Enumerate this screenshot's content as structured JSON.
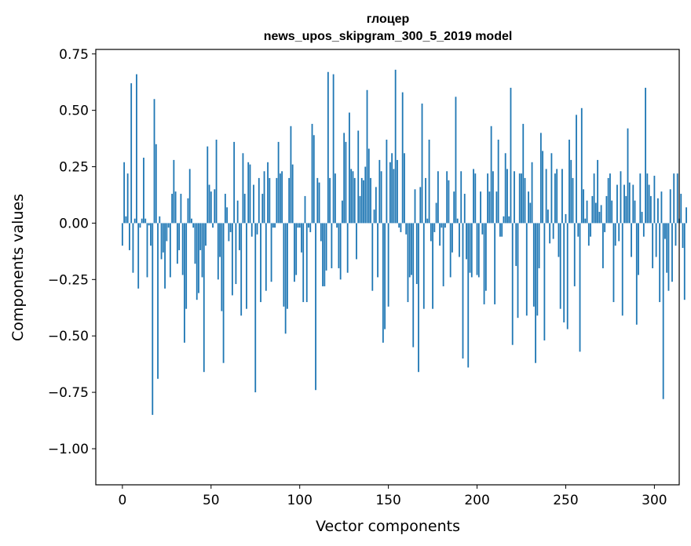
{
  "chart_data": {
    "type": "bar",
    "title_line1": "глоцер",
    "title_line2": "news_upos_skipgram_300_5_2019 model",
    "xlabel": "Vector components",
    "ylabel": "Components values",
    "xlim": [
      -15,
      314
    ],
    "ylim": [
      -1.16,
      0.77
    ],
    "x_ticks": [
      0,
      50,
      100,
      150,
      200,
      250,
      300
    ],
    "x_tick_labels": [
      "0",
      "50",
      "100",
      "150",
      "200",
      "250",
      "300"
    ],
    "y_ticks": [
      0.75,
      0.5,
      0.25,
      0.0,
      -0.25,
      -0.5,
      -0.75,
      -1.0
    ],
    "y_tick_labels": [
      "0.75",
      "0.50",
      "0.25",
      "0.00",
      "−0.25",
      "−0.50",
      "−0.75",
      "−1.00"
    ],
    "bar_color": "#1f77b4",
    "bar_width": 0.8,
    "values": [
      -0.1,
      0.27,
      0.03,
      0.22,
      -0.12,
      0.62,
      -0.22,
      0.02,
      0.66,
      -0.29,
      -0.02,
      0.02,
      0.29,
      0.02,
      -0.24,
      -0.01,
      -0.1,
      -0.85,
      0.55,
      0.35,
      -0.69,
      0.03,
      -0.16,
      -0.13,
      -0.29,
      -0.08,
      -0.02,
      -0.24,
      0.13,
      0.28,
      0.14,
      -0.18,
      -0.12,
      0.13,
      -0.23,
      -0.53,
      -0.38,
      0.11,
      0.24,
      0.02,
      -0.02,
      -0.18,
      -0.34,
      -0.31,
      -0.12,
      -0.24,
      -0.66,
      -0.1,
      0.34,
      0.17,
      0.14,
      -0.02,
      0.15,
      0.37,
      -0.25,
      -0.15,
      -0.39,
      -0.62,
      0.13,
      0.07,
      -0.08,
      -0.04,
      -0.32,
      0.36,
      -0.27,
      0.1,
      -0.12,
      -0.41,
      0.31,
      0.13,
      -0.38,
      0.27,
      0.26,
      -0.06,
      0.17,
      -0.75,
      -0.05,
      0.2,
      -0.35,
      0.13,
      0.23,
      -0.3,
      0.27,
      0.2,
      -0.26,
      -0.02,
      -0.02,
      0.2,
      0.36,
      0.22,
      0.23,
      -0.37,
      -0.49,
      -0.38,
      0.2,
      0.43,
      0.26,
      -0.26,
      -0.23,
      -0.02,
      -0.02,
      -0.13,
      -0.35,
      0.12,
      -0.35,
      -0.02,
      -0.04,
      0.44,
      0.39,
      -0.74,
      0.2,
      0.18,
      -0.08,
      -0.28,
      -0.28,
      -0.21,
      0.67,
      0.2,
      -0.2,
      0.66,
      0.22,
      -0.02,
      -0.2,
      -0.25,
      0.1,
      0.4,
      0.36,
      -0.22,
      0.49,
      0.24,
      0.23,
      0.2,
      -0.16,
      0.41,
      0.12,
      0.2,
      0.19,
      0.25,
      0.59,
      0.33,
      0.2,
      -0.3,
      0.06,
      0.16,
      -0.24,
      0.28,
      0.23,
      -0.53,
      -0.47,
      0.37,
      -0.37,
      0.27,
      0.31,
      0.24,
      0.68,
      0.28,
      -0.02,
      -0.04,
      0.58,
      0.31,
      -0.05,
      -0.35,
      -0.24,
      -0.23,
      -0.55,
      0.15,
      -0.27,
      -0.66,
      0.16,
      0.53,
      -0.38,
      0.2,
      0.02,
      0.37,
      -0.08,
      -0.38,
      -0.04,
      0.09,
      0.23,
      -0.1,
      -0.02,
      -0.28,
      -0.02,
      0.23,
      0.19,
      -0.24,
      -0.13,
      0.14,
      0.56,
      0.02,
      -0.15,
      0.23,
      -0.6,
      0.13,
      -0.16,
      -0.64,
      -0.22,
      -0.24,
      0.24,
      0.22,
      -0.23,
      -0.24,
      0.14,
      -0.05,
      -0.36,
      -0.3,
      0.22,
      0.14,
      0.43,
      0.23,
      -0.36,
      0.14,
      0.37,
      -0.06,
      -0.06,
      0.03,
      0.31,
      0.24,
      0.03,
      0.6,
      -0.54,
      0.23,
      -0.19,
      -0.42,
      0.22,
      0.22,
      0.44,
      0.2,
      -0.41,
      0.14,
      0.09,
      0.27,
      -0.37,
      -0.62,
      -0.41,
      -0.2,
      0.4,
      0.32,
      -0.52,
      0.24,
      0.06,
      -0.09,
      0.31,
      -0.07,
      0.22,
      0.24,
      -0.15,
      -0.38,
      0.24,
      -0.44,
      0.04,
      -0.47,
      0.37,
      0.28,
      0.2,
      -0.28,
      0.48,
      -0.06,
      -0.57,
      0.51,
      0.15,
      0.02,
      0.1,
      -0.1,
      -0.06,
      0.12,
      0.22,
      0.09,
      0.28,
      0.05,
      0.08,
      -0.2,
      -0.04,
      0.12,
      0.2,
      0.22,
      0.1,
      -0.35,
      -0.1,
      0.17,
      -0.08,
      0.23,
      -0.41,
      0.17,
      0.12,
      0.42,
      0.18,
      -0.15,
      0.17,
      0.1,
      -0.45,
      -0.23,
      0.22,
      0.05,
      -0.06,
      0.6,
      0.22,
      0.17,
      0.12,
      -0.2,
      0.21,
      -0.15,
      0.11,
      -0.35,
      0.14,
      -0.78,
      -0.07,
      -0.22,
      -0.3,
      0.15,
      -0.26,
      0.22,
      -0.1,
      0.22,
      0.02,
      0.13,
      -0.11,
      -0.34,
      0.07
    ]
  }
}
